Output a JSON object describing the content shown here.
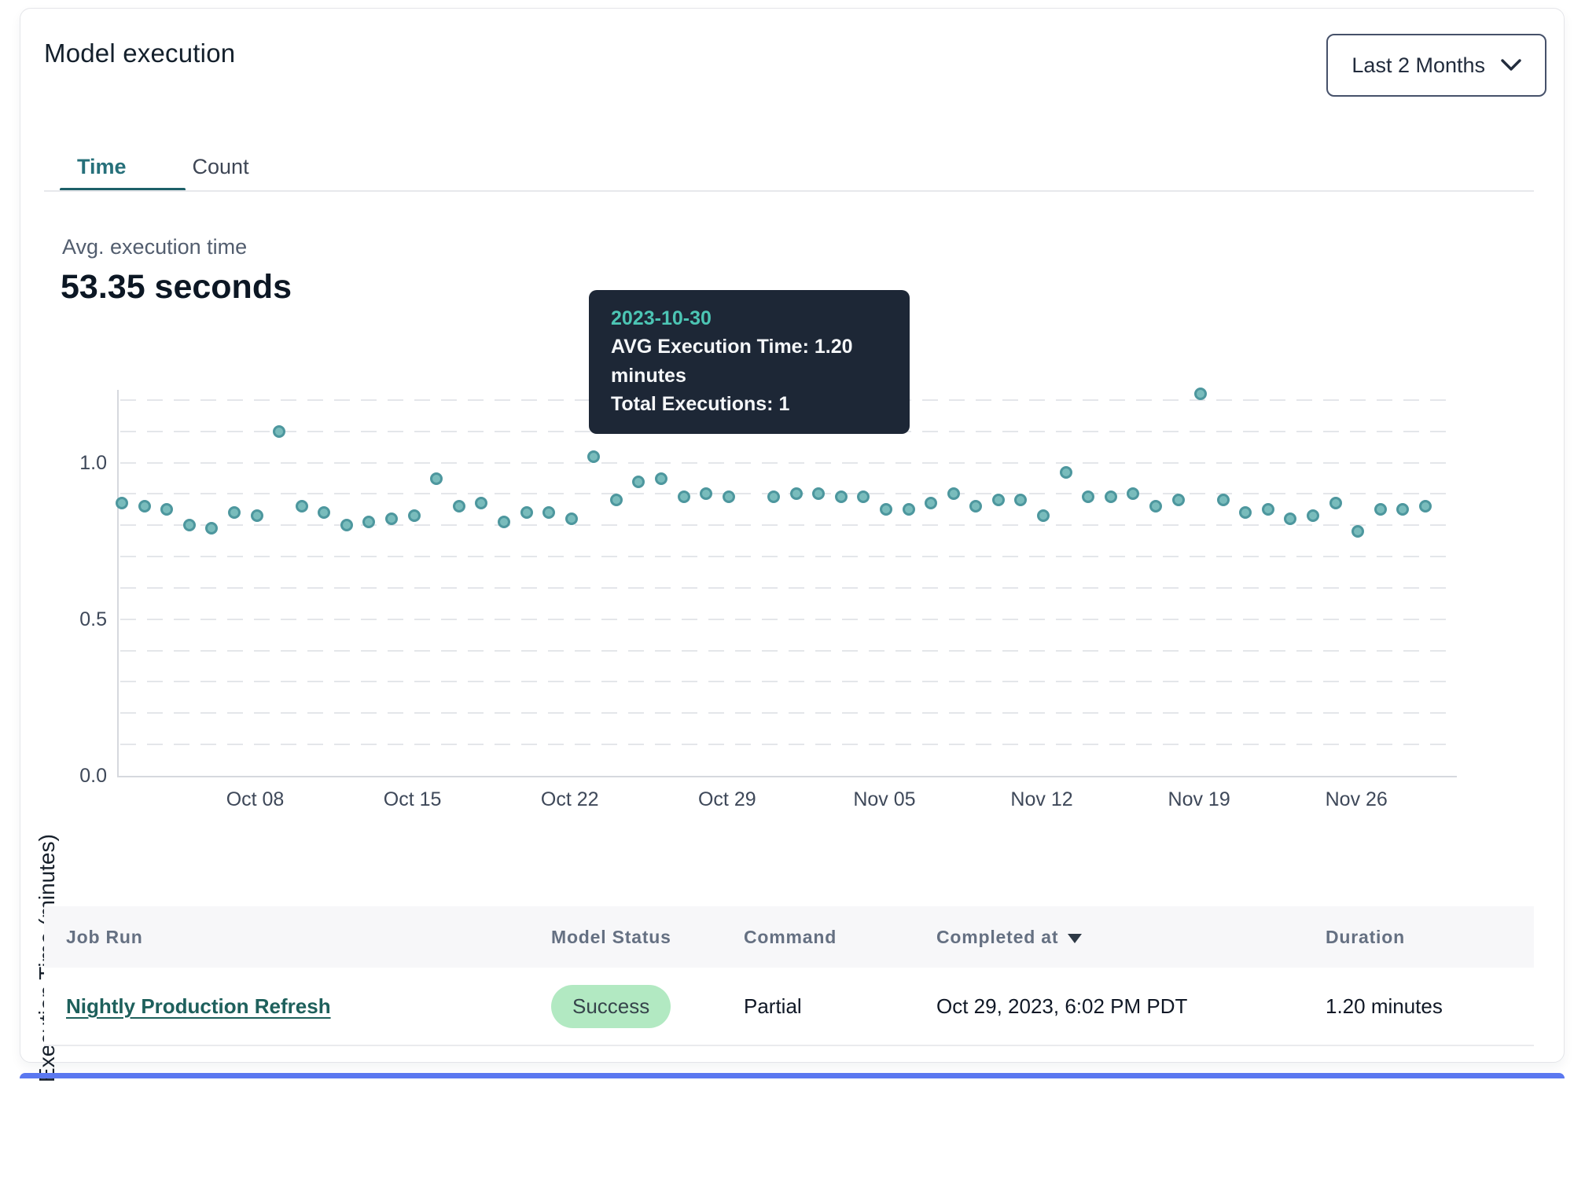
{
  "header": {
    "title": "Model execution",
    "range_selector": {
      "label": "Last 2 Months"
    }
  },
  "tabs": [
    {
      "label": "Time",
      "active": true
    },
    {
      "label": "Count",
      "active": false
    }
  ],
  "summary": {
    "label": "Avg. execution time",
    "value": "53.35 seconds"
  },
  "tooltip": {
    "date": "2023-10-30",
    "avg_line": "AVG Execution Time: 1.20 minutes",
    "total_line": "Total Executions: 1"
  },
  "chart_data": {
    "type": "scatter",
    "title": "",
    "xlabel": "",
    "ylabel": "Execution Time (minutes)",
    "x": [
      "2023-10-02",
      "2023-10-03",
      "2023-10-04",
      "2023-10-05",
      "2023-10-06",
      "2023-10-07",
      "2023-10-08",
      "2023-10-09",
      "2023-10-10",
      "2023-10-11",
      "2023-10-12",
      "2023-10-13",
      "2023-10-14",
      "2023-10-15",
      "2023-10-16",
      "2023-10-17",
      "2023-10-18",
      "2023-10-19",
      "2023-10-20",
      "2023-10-21",
      "2023-10-22",
      "2023-10-23",
      "2023-10-24",
      "2023-10-25",
      "2023-10-26",
      "2023-10-27",
      "2023-10-28",
      "2023-10-29",
      "2023-10-30",
      "2023-10-31",
      "2023-11-01",
      "2023-11-02",
      "2023-11-03",
      "2023-11-04",
      "2023-11-05",
      "2023-11-06",
      "2023-11-07",
      "2023-11-08",
      "2023-11-09",
      "2023-11-10",
      "2023-11-11",
      "2023-11-12",
      "2023-11-13",
      "2023-11-14",
      "2023-11-15",
      "2023-11-16",
      "2023-11-17",
      "2023-11-18",
      "2023-11-19",
      "2023-11-20",
      "2023-11-21",
      "2023-11-22",
      "2023-11-23",
      "2023-11-24",
      "2023-11-25",
      "2023-11-26",
      "2023-11-27",
      "2023-11-28",
      "2023-11-29"
    ],
    "values": [
      0.87,
      0.86,
      0.85,
      0.8,
      0.79,
      0.84,
      0.83,
      1.1,
      0.86,
      0.84,
      0.8,
      0.81,
      0.82,
      0.83,
      0.95,
      0.86,
      0.87,
      0.81,
      0.84,
      0.84,
      0.82,
      1.02,
      0.88,
      0.94,
      0.95,
      0.89,
      0.9,
      0.89,
      1.2,
      0.89,
      0.9,
      0.9,
      0.89,
      0.89,
      0.85,
      0.85,
      0.87,
      0.9,
      0.86,
      0.88,
      0.88,
      0.83,
      0.97,
      0.89,
      0.89,
      0.9,
      0.86,
      0.88,
      1.22,
      0.88,
      0.84,
      0.85,
      0.82,
      0.83,
      0.87,
      0.78,
      0.85,
      0.85,
      0.86
    ],
    "highlight_index": 28,
    "ylim": [
      0,
      1.2325
    ],
    "grid_step": 0.1,
    "yticks": [
      {
        "value": 0.0,
        "label": "0.0"
      },
      {
        "value": 0.5,
        "label": "0.5"
      },
      {
        "value": 1.0,
        "label": "1.0"
      }
    ],
    "xticks": [
      {
        "index": 6,
        "label": "Oct 08"
      },
      {
        "index": 13,
        "label": "Oct 15"
      },
      {
        "index": 20,
        "label": "Oct 22"
      },
      {
        "index": 27,
        "label": "Oct 29"
      },
      {
        "index": 34,
        "label": "Nov 05"
      },
      {
        "index": 41,
        "label": "Nov 12"
      },
      {
        "index": 48,
        "label": "Nov 19"
      },
      {
        "index": 55,
        "label": "Nov 26"
      }
    ],
    "legend": null,
    "grid": "horizontal-dashed",
    "colors": {
      "point_fill": "#79bcbc",
      "point_stroke": "#4d979e",
      "highlight_fill": "#44707c",
      "accent_teal": "#1d5f68",
      "tooltip_bg": "#1d2736",
      "tooltip_date": "#4cc5b4"
    }
  },
  "table": {
    "columns": [
      {
        "label": "Job Run"
      },
      {
        "label": "Model Status"
      },
      {
        "label": "Command"
      },
      {
        "label": "Completed at",
        "sorted": "desc"
      },
      {
        "label": "Duration"
      }
    ],
    "rows": [
      {
        "job_run": "Nightly Production Refresh",
        "model_status": "Success",
        "command": "Partial",
        "completed_at": "Oct 29, 2023, 6:02 PM PDT",
        "duration": "1.20 minutes"
      }
    ]
  }
}
